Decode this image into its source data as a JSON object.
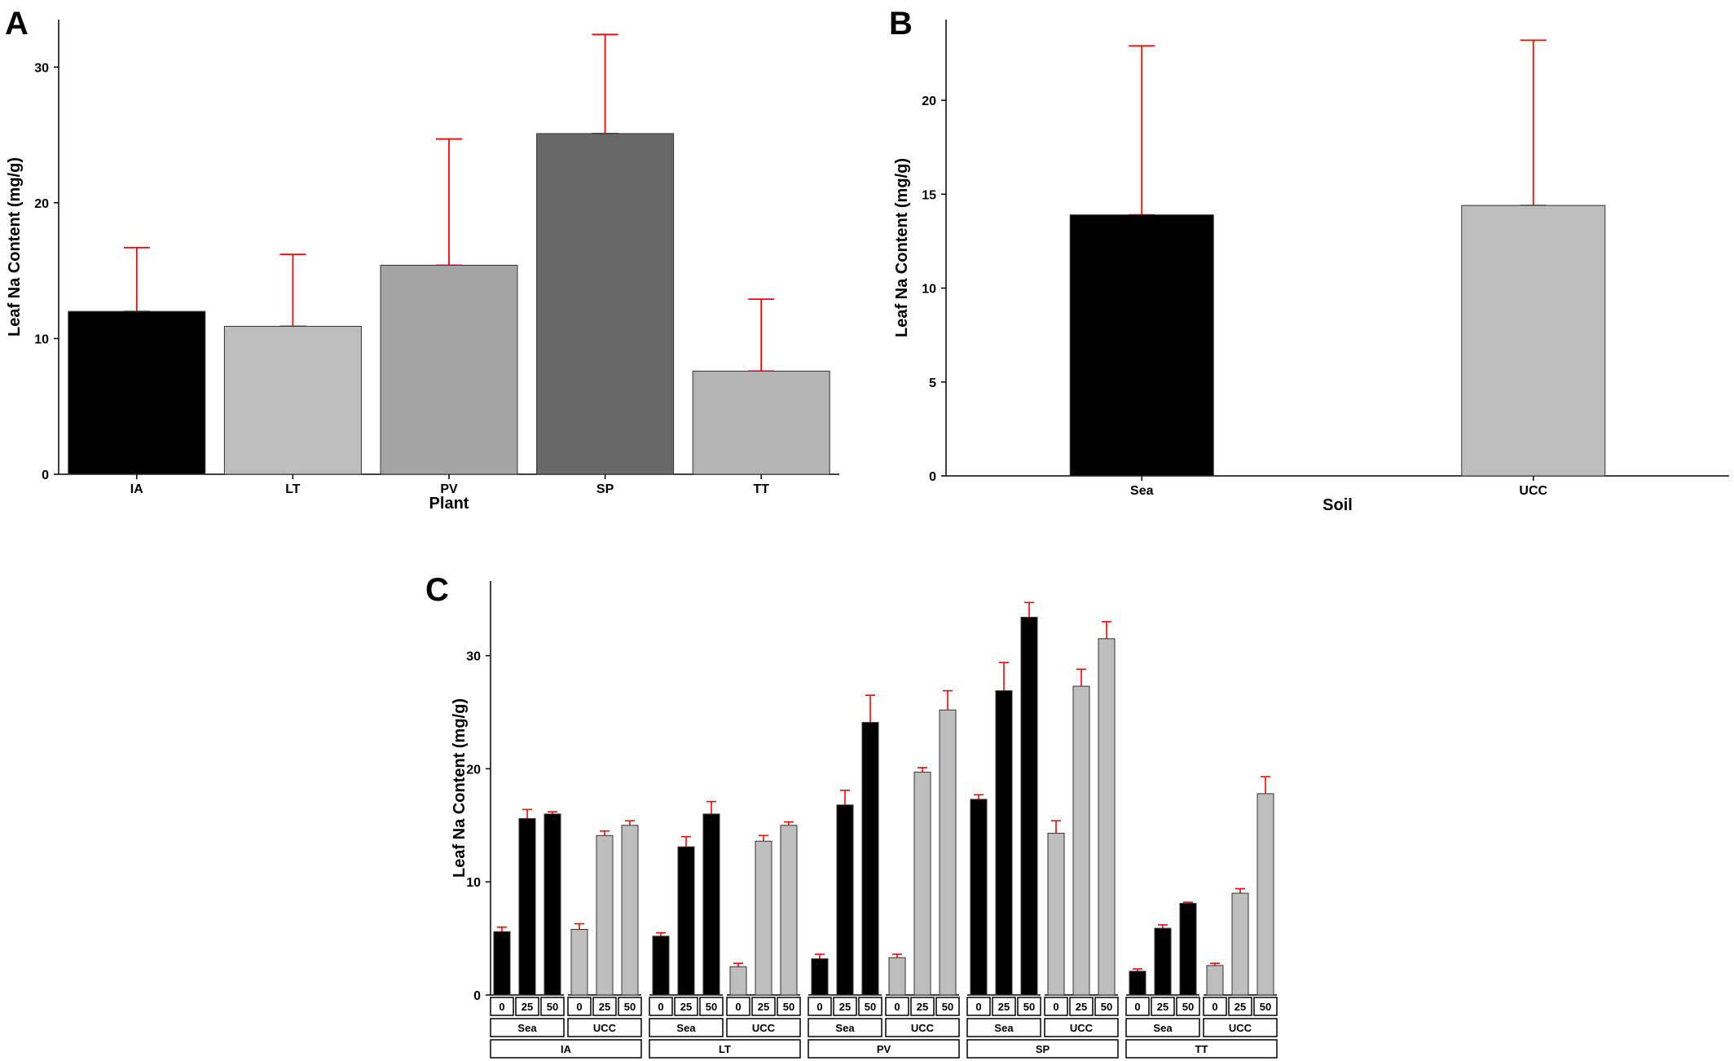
{
  "chart_data": [
    {
      "panel": "A",
      "type": "bar",
      "xlabel": "Plant",
      "ylabel": "Leaf Na Content (mg/g)",
      "ylim": [
        0,
        33.5
      ],
      "yticks": [
        0,
        10,
        20,
        30
      ],
      "categories": [
        "IA",
        "LT",
        "PV",
        "SP",
        "TT"
      ],
      "values": [
        12.0,
        10.9,
        15.4,
        25.1,
        7.6
      ],
      "error_upper": [
        16.7,
        16.2,
        24.7,
        32.4,
        12.9
      ],
      "bar_colors": [
        "#000000",
        "#bebebe",
        "#a4a4a4",
        "#686868",
        "#b4b4b4"
      ],
      "error_color": "#ff0000",
      "grid": false,
      "legend": "none"
    },
    {
      "panel": "B",
      "type": "bar",
      "xlabel": "Soil",
      "ylabel": "Leaf Na Content (mg/g)",
      "ylim": [
        0,
        24.3
      ],
      "yticks": [
        0,
        5,
        10,
        15,
        20
      ],
      "categories": [
        "Sea",
        "UCC"
      ],
      "values": [
        13.9,
        14.4
      ],
      "error_upper": [
        22.9,
        23.2
      ],
      "bar_colors": [
        "#000000",
        "#bebebe"
      ],
      "error_color": "#ff0000",
      "grid": false,
      "legend": "none"
    },
    {
      "panel": "C",
      "type": "bar",
      "ylabel": "Leaf Na Content (mg/g)",
      "ylim": [
        0,
        36.6
      ],
      "yticks": [
        0,
        10,
        20,
        30
      ],
      "facets": {
        "plants": [
          "IA",
          "LT",
          "PV",
          "SP",
          "TT"
        ],
        "soils": [
          "Sea",
          "UCC"
        ],
        "levels": [
          "0",
          "25",
          "50"
        ]
      },
      "soil_colors": {
        "Sea": "#000000",
        "UCC": "#bebebe"
      },
      "error_color": "#ff0000",
      "groups": [
        {
          "plant": "IA",
          "soil": "Sea",
          "values": [
            5.6,
            15.6,
            16.0
          ],
          "error_upper": [
            6.0,
            16.4,
            16.2
          ]
        },
        {
          "plant": "IA",
          "soil": "UCC",
          "values": [
            5.8,
            14.1,
            15.0
          ],
          "error_upper": [
            6.3,
            14.5,
            15.4
          ]
        },
        {
          "plant": "LT",
          "soil": "Sea",
          "values": [
            5.2,
            13.1,
            16.0
          ],
          "error_upper": [
            5.5,
            14.0,
            17.1
          ]
        },
        {
          "plant": "LT",
          "soil": "UCC",
          "values": [
            2.5,
            13.6,
            15.0
          ],
          "error_upper": [
            2.8,
            14.1,
            15.3
          ]
        },
        {
          "plant": "PV",
          "soil": "Sea",
          "values": [
            3.2,
            16.8,
            24.1
          ],
          "error_upper": [
            3.6,
            18.1,
            26.5
          ]
        },
        {
          "plant": "PV",
          "soil": "UCC",
          "values": [
            3.3,
            19.7,
            25.2
          ],
          "error_upper": [
            3.6,
            20.1,
            26.9
          ]
        },
        {
          "plant": "SP",
          "soil": "Sea",
          "values": [
            17.3,
            26.9,
            33.4
          ],
          "error_upper": [
            17.7,
            29.4,
            34.7
          ]
        },
        {
          "plant": "SP",
          "soil": "UCC",
          "values": [
            14.3,
            27.3,
            31.5
          ],
          "error_upper": [
            15.4,
            28.8,
            33.0
          ]
        },
        {
          "plant": "TT",
          "soil": "Sea",
          "values": [
            2.1,
            5.9,
            8.1
          ],
          "error_upper": [
            2.3,
            6.2,
            8.2
          ]
        },
        {
          "plant": "TT",
          "soil": "UCC",
          "values": [
            2.6,
            9.0,
            17.8
          ],
          "error_upper": [
            2.8,
            9.4,
            19.3
          ]
        }
      ],
      "grid": false,
      "legend": "none"
    }
  ]
}
